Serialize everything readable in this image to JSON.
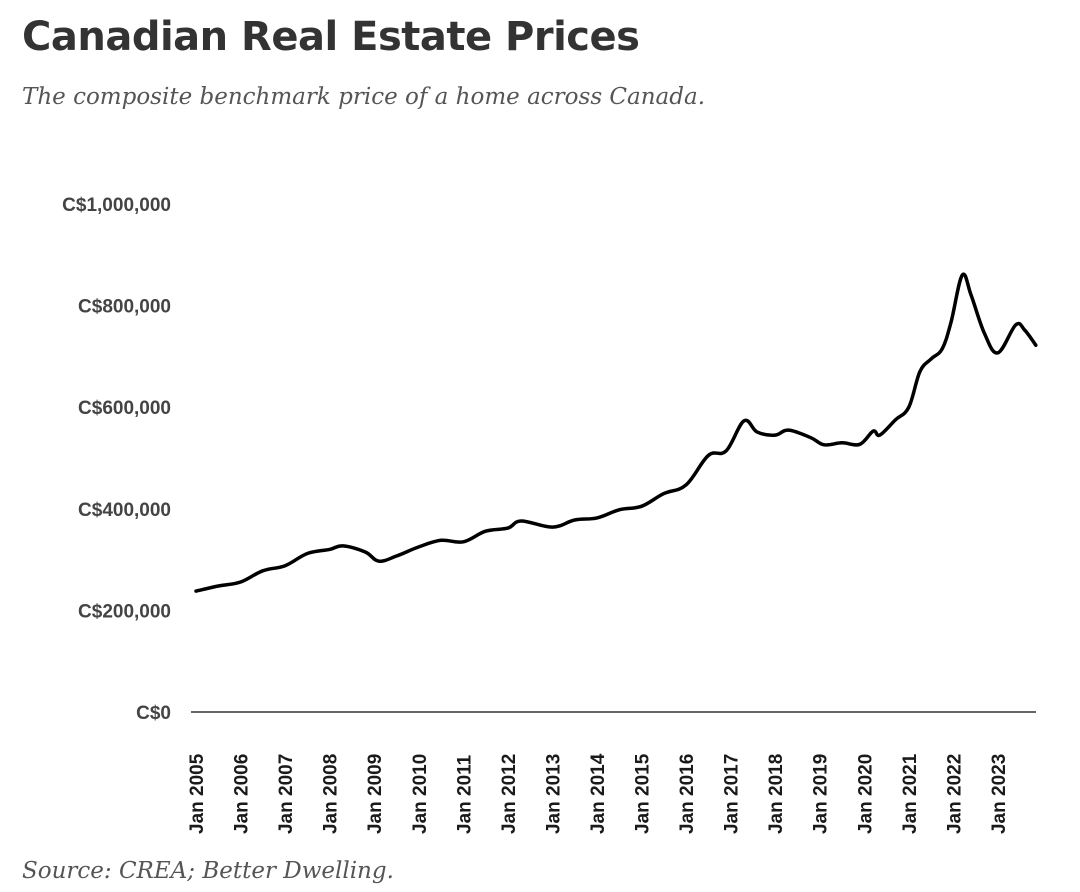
{
  "header": {
    "title": "Canadian Real Estate Prices",
    "subtitle": "The composite benchmark price of a home across Canada."
  },
  "footer": {
    "source": "Source: CREA; Better Dwelling."
  },
  "colors": {
    "line": "#000000",
    "axis": "#333333",
    "title": "#333333",
    "subtitle": "#555555"
  },
  "chart_data": {
    "type": "line",
    "title": "Canadian Real Estate Prices",
    "subtitle": "The composite benchmark price of a home across Canada.",
    "xlabel": "",
    "ylabel": "",
    "ylim": [
      0,
      1000000
    ],
    "xlim": [
      2005.0,
      2023.9
    ],
    "grid": false,
    "legend": "none",
    "y_ticks": [
      {
        "value": 0,
        "label": "C$0"
      },
      {
        "value": 200000,
        "label": "C$200,000"
      },
      {
        "value": 400000,
        "label": "C$400,000"
      },
      {
        "value": 600000,
        "label": "C$600,000"
      },
      {
        "value": 800000,
        "label": "C$800,000"
      },
      {
        "value": 1000000,
        "label": "C$1,000,000"
      }
    ],
    "x_ticks": [
      {
        "value": 2005,
        "label": "Jan 2005"
      },
      {
        "value": 2006,
        "label": "Jan 2006"
      },
      {
        "value": 2007,
        "label": "Jan 2007"
      },
      {
        "value": 2008,
        "label": "Jan 2008"
      },
      {
        "value": 2009,
        "label": "Jan 2009"
      },
      {
        "value": 2010,
        "label": "Jan 2010"
      },
      {
        "value": 2011,
        "label": "Jan 2011"
      },
      {
        "value": 2012,
        "label": "Jan 2012"
      },
      {
        "value": 2013,
        "label": "Jan 2013"
      },
      {
        "value": 2014,
        "label": "Jan 2014"
      },
      {
        "value": 2015,
        "label": "Jan 2015"
      },
      {
        "value": 2016,
        "label": "Jan 2016"
      },
      {
        "value": 2017,
        "label": "Jan 2017"
      },
      {
        "value": 2018,
        "label": "Jan 2018"
      },
      {
        "value": 2019,
        "label": "Jan 2019"
      },
      {
        "value": 2020,
        "label": "Jan 2020"
      },
      {
        "value": 2021,
        "label": "Jan 2021"
      },
      {
        "value": 2022,
        "label": "Jan 2022"
      },
      {
        "value": 2023,
        "label": "Jan 2023"
      }
    ],
    "series": [
      {
        "name": "Composite benchmark price",
        "x": [
          2005.0,
          2005.5,
          2006.0,
          2006.5,
          2007.0,
          2007.5,
          2008.0,
          2008.3,
          2008.8,
          2009.1,
          2009.5,
          2010.0,
          2010.5,
          2011.0,
          2011.5,
          2012.0,
          2012.3,
          2013.0,
          2013.5,
          2014.0,
          2014.5,
          2015.0,
          2015.5,
          2016.0,
          2016.5,
          2016.9,
          2017.3,
          2017.6,
          2018.0,
          2018.3,
          2018.8,
          2019.1,
          2019.5,
          2019.9,
          2020.2,
          2020.35,
          2020.7,
          2021.0,
          2021.25,
          2021.5,
          2021.75,
          2021.95,
          2022.2,
          2022.4,
          2022.7,
          2023.0,
          2023.4,
          2023.6,
          2023.85
        ],
        "values": [
          238000,
          248000,
          256000,
          278000,
          288000,
          312000,
          320000,
          327000,
          315000,
          297000,
          307000,
          325000,
          338000,
          335000,
          356000,
          362000,
          376000,
          364000,
          378000,
          382000,
          398000,
          405000,
          430000,
          447000,
          505000,
          514000,
          573000,
          551000,
          545000,
          555000,
          540000,
          526000,
          530000,
          527000,
          553000,
          545000,
          575000,
          600000,
          670000,
          695000,
          715000,
          768000,
          860000,
          820000,
          745000,
          707000,
          762000,
          752000,
          722000
        ]
      }
    ]
  }
}
